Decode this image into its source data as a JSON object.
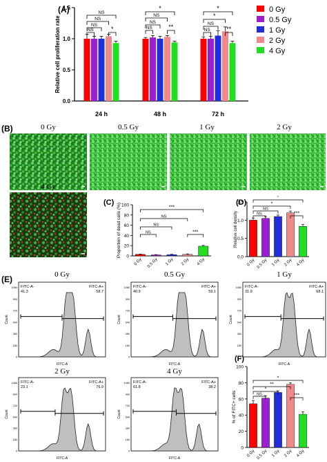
{
  "figure": {
    "panels": {
      "A": "(A)",
      "B": "(B)",
      "C": "(C)",
      "D": "(D)",
      "E": "(E)",
      "F": "(F)"
    },
    "dose_labels": [
      "0 Gy",
      "0.5 Gy",
      "1 Gy",
      "2 Gy",
      "4 Gy"
    ],
    "colors": {
      "0 Gy": "#ff0000",
      "0.5 Gy": "#9b1fcf",
      "1 Gy": "#1f2ed6",
      "2 Gy": "#f08a8a",
      "4 Gy": "#22dd22"
    },
    "sig": {
      "ns": "NS",
      "one": "*",
      "two": "**",
      "three": "***"
    },
    "flow": {
      "xlabel": "FITC-A",
      "ylabel": "Count",
      "neg_label": "FITC-A-",
      "pos_label": "FITC-A+",
      "yticks": [
        "0",
        "60",
        "120",
        "180",
        "240",
        "300",
        "360",
        "420",
        "480",
        "540",
        "600",
        "660",
        "720",
        "780",
        "840",
        "900",
        "960",
        "1020",
        "1080",
        "1140"
      ]
    }
  },
  "chart_data": [
    {
      "id": "A",
      "type": "bar",
      "categories": [
        "24 h",
        "48 h",
        "72 h"
      ],
      "series": [
        {
          "name": "0 Gy",
          "values": [
            1.0,
            1.0,
            1.0
          ],
          "err": [
            0.07,
            0.02,
            0.03
          ]
        },
        {
          "name": "0.5 Gy",
          "values": [
            1.0,
            1.02,
            1.0
          ],
          "err": [
            0.04,
            0.03,
            0.04
          ]
        },
        {
          "name": "1 Gy",
          "values": [
            1.0,
            1.0,
            1.05
          ],
          "err": [
            0.04,
            0.04,
            0.08
          ]
        },
        {
          "name": "2 Gy",
          "values": [
            1.04,
            1.03,
            1.12
          ],
          "err": [
            0.03,
            0.02,
            0.07
          ]
        },
        {
          "name": "4 Gy",
          "values": [
            0.93,
            0.94,
            0.93
          ],
          "err": [
            0.03,
            0.02,
            0.03
          ]
        }
      ],
      "ylabel": "Relative cell proliferation rate",
      "ylim": [
        0,
        1.5
      ],
      "yticks": [
        "0.0",
        "0.5",
        "1.0",
        "1.5"
      ],
      "legend": "right"
    },
    {
      "id": "C",
      "type": "bar",
      "categories": [
        "0 Gy",
        "0.5 Gy",
        "1 Gy",
        "2 Gy",
        "4 Gy"
      ],
      "values": [
        3,
        2,
        2.5,
        3,
        19
      ],
      "err": [
        0.6,
        0.5,
        0.6,
        0.8,
        1.5
      ],
      "ylabel": "Proportion of dead cells (%)",
      "ylim": [
        0,
        100
      ],
      "yticks": [
        "0",
        "20",
        "40",
        "60",
        "80",
        "100"
      ]
    },
    {
      "id": "D",
      "type": "bar",
      "categories": [
        "0 Gy",
        "0.5 Gy",
        "1 Gy",
        "2 Gy",
        "4 Gy"
      ],
      "values": [
        1.0,
        1.05,
        1.1,
        1.2,
        0.83
      ],
      "err": [
        0.06,
        0.05,
        0.04,
        0.05,
        0.05
      ],
      "ylabel": "Relative cell density",
      "ylim": [
        0,
        1.5
      ],
      "yticks": [
        "0.0",
        "0.5",
        "1.0",
        "1.5"
      ]
    },
    {
      "id": "F",
      "type": "bar",
      "categories": [
        "0 Gy",
        "0.5 Gy",
        "1 Gy",
        "2 Gy",
        "4 Gy"
      ],
      "values": [
        54,
        61,
        68,
        78,
        41
      ],
      "err": [
        4,
        3,
        2,
        2,
        3
      ],
      "ylabel": "% of FITC+ cells",
      "ylim": [
        0,
        100
      ],
      "yticks": [
        "0",
        "20",
        "40",
        "60",
        "80",
        "100"
      ]
    },
    {
      "id": "E",
      "type": "area",
      "title": "FITC histograms",
      "histograms": [
        {
          "dose": "0 Gy",
          "neg": "41.3",
          "pos": "58.7"
        },
        {
          "dose": "0.5 Gy",
          "neg": "40.9",
          "pos": "59.1"
        },
        {
          "dose": "1 Gy",
          "neg": "31.9",
          "pos": "68.1"
        },
        {
          "dose": "2 Gy",
          "neg": "23.1",
          "pos": "76.9"
        },
        {
          "dose": "4 Gy",
          "neg": "61.8",
          "pos": "38.2"
        }
      ]
    }
  ]
}
